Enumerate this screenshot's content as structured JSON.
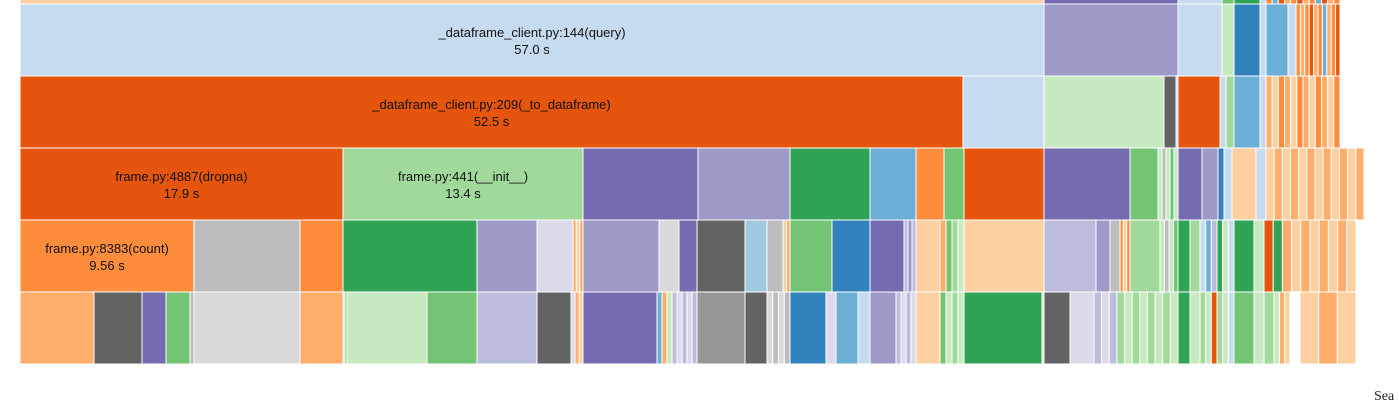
{
  "chart_data": {
    "type": "icicle",
    "title": "",
    "unit": "s",
    "labeled_nodes": [
      {
        "name": "_dataframe_client.py:144(query)",
        "value": 57.0,
        "value_label": "57.0 s",
        "depth": 1
      },
      {
        "name": "_dataframe_client.py:209(_to_dataframe)",
        "value": 52.5,
        "value_label": "52.5 s",
        "depth": 2
      },
      {
        "name": "frame.py:4887(dropna)",
        "value": 17.9,
        "value_label": "17.9 s",
        "depth": 3
      },
      {
        "name": "frame.py:441(__init__)",
        "value": 13.4,
        "value_label": "13.4 s",
        "depth": 3
      },
      {
        "name": "frame.py:8383(count)",
        "value": 9.56,
        "value_label": "9.56 s",
        "depth": 4
      }
    ]
  },
  "search": {
    "label": "Sea"
  },
  "colors": {
    "light_blue": "#c6dbef",
    "mid_blue": "#9ecae1",
    "blue": "#6baed6",
    "dark_blue": "#3182bd",
    "dark_orange": "#e6550d",
    "orange": "#fd8d3c",
    "light_orange": "#fdae6b",
    "pale_orange": "#fdd0a2",
    "dark_green": "#31a354",
    "green": "#74c476",
    "light_green": "#a1d99b",
    "pale_green": "#c7e9c0",
    "dark_purple": "#756bb1",
    "purple": "#9e9ac8",
    "light_purple": "#bcbddc",
    "pale_purple": "#dadaeb",
    "dark_grey": "#636363",
    "grey": "#969696",
    "light_grey": "#bdbdbd",
    "pale_grey": "#d9d9d9"
  }
}
